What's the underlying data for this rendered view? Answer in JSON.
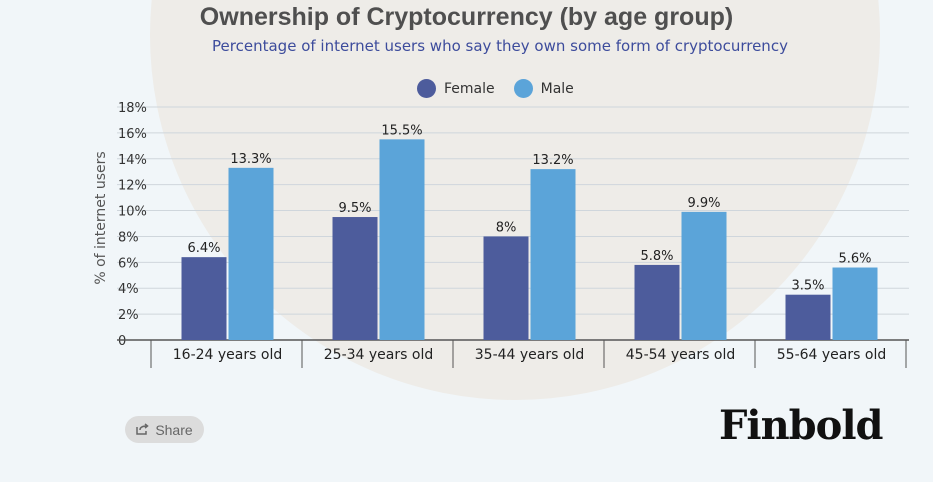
{
  "title": "Ownership of Cryptocurrency (by age group)",
  "subtitle": "Percentage of internet users who say they own some form of cryptocurrency",
  "share_label": "Share",
  "logo_text": "Finbold",
  "colors": {
    "female": "#4d5c9c",
    "male": "#5ba4d9",
    "background": "#f1f6f9"
  },
  "chart_data": {
    "type": "bar",
    "categories": [
      "16-24 years old",
      "25-34 years old",
      "35-44 years old",
      "45-54 years old",
      "55-64 years old"
    ],
    "series": [
      {
        "name": "Female",
        "values": [
          6.4,
          9.5,
          8,
          5.8,
          3.5
        ],
        "labels": [
          "6.4%",
          "9.5%",
          "8%",
          "5.8%",
          "3.5%"
        ]
      },
      {
        "name": "Male",
        "values": [
          13.3,
          15.5,
          13.2,
          9.9,
          5.6
        ],
        "labels": [
          "13.3%",
          "15.5%",
          "13.2%",
          "9.9%",
          "5.6%"
        ]
      }
    ],
    "ylabel": "% of internet users",
    "xlabel": "",
    "ylim": [
      0,
      18
    ],
    "yticks": [
      "0",
      "2%",
      "4%",
      "6%",
      "8%",
      "10%",
      "12%",
      "14%",
      "16%",
      "18%"
    ],
    "grid": true,
    "legend_position": "top-center"
  }
}
